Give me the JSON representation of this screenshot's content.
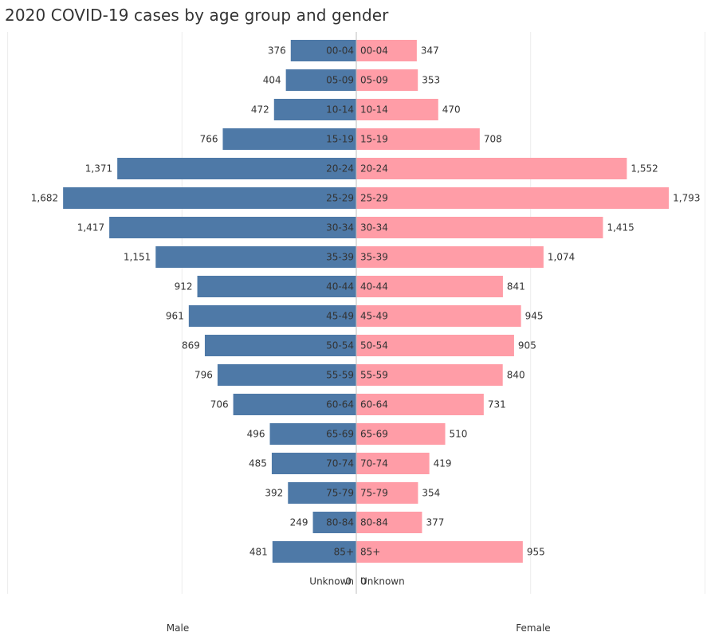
{
  "title": "2020 COVID-19 cases by age group and gender",
  "chart_data": {
    "type": "bar",
    "orientation": "horizontal-butterfly",
    "title": "2020 COVID-19 cases by age group and gender",
    "categories": [
      "00-04",
      "05-09",
      "10-14",
      "15-19",
      "20-24",
      "25-29",
      "30-34",
      "35-39",
      "40-44",
      "45-49",
      "50-54",
      "55-59",
      "60-64",
      "65-69",
      "70-74",
      "75-79",
      "80-84",
      "85+",
      "Unknown"
    ],
    "series": [
      {
        "name": "Male",
        "color": "#4e79a7",
        "values": [
          376,
          404,
          472,
          766,
          1371,
          1682,
          1417,
          1151,
          912,
          961,
          869,
          796,
          706,
          496,
          485,
          392,
          249,
          481,
          0
        ],
        "labels": [
          "376",
          "404",
          "472",
          "766",
          "1,371",
          "1,682",
          "1,417",
          "1,151",
          "912",
          "961",
          "869",
          "796",
          "706",
          "496",
          "485",
          "392",
          "249",
          "481",
          "0"
        ]
      },
      {
        "name": "Female",
        "color": "#ff9da7",
        "values": [
          347,
          353,
          470,
          708,
          1552,
          1793,
          1415,
          1074,
          841,
          945,
          905,
          840,
          731,
          510,
          419,
          354,
          377,
          955,
          0
        ],
        "labels": [
          "347",
          "353",
          "470",
          "708",
          "1,552",
          "1,793",
          "1,415",
          "1,074",
          "841",
          "945",
          "905",
          "840",
          "731",
          "510",
          "419",
          "354",
          "377",
          "955",
          "0"
        ]
      }
    ],
    "xlabel_left": "Male",
    "xlabel_right": "Female",
    "xlim": [
      0,
      2000
    ],
    "grid": true
  }
}
